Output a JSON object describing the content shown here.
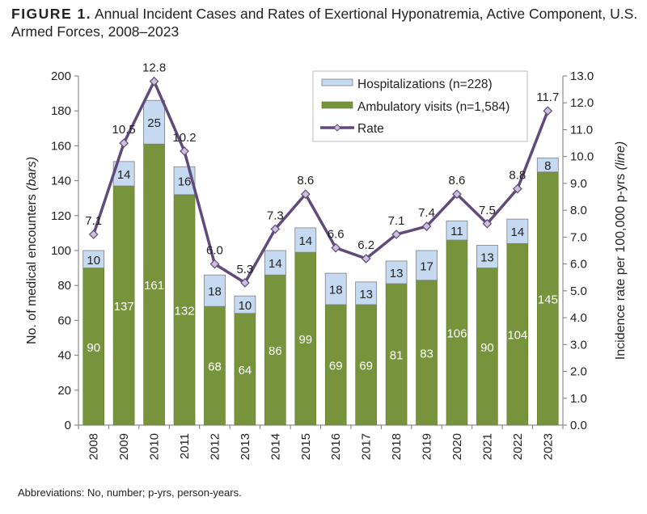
{
  "title_prefix": "FIGURE 1.",
  "title": "Annual Incident Cases and Rates of Exertional Hyponatremia, Active Component, U.S. Armed Forces, 2008–2023",
  "footnote": "Abbreviations: No, number; p-yrs, person-years.",
  "chart_data": {
    "type": "bar",
    "stacked": true,
    "categories": [
      "2008",
      "2009",
      "2010",
      "2011",
      "2012",
      "2013",
      "2014",
      "2015",
      "2016",
      "2017",
      "2018",
      "2019",
      "2020",
      "2021",
      "2022",
      "2023"
    ],
    "series": [
      {
        "name": "Ambulatory visits (n=1,584)",
        "color": "#77933c",
        "values": [
          90,
          137,
          161,
          132,
          68,
          64,
          86,
          99,
          69,
          69,
          81,
          83,
          106,
          90,
          104,
          145
        ]
      },
      {
        "name": "Hospitalizations (n=228)",
        "color": "#c5d9f1",
        "values": [
          10,
          14,
          25,
          16,
          18,
          10,
          14,
          14,
          18,
          13,
          13,
          17,
          11,
          13,
          14,
          8
        ]
      },
      {
        "name": "Rate",
        "type": "line",
        "axis": "right",
        "color": "#604a7b",
        "marker_color": "#ccc0da",
        "values": [
          7.1,
          10.5,
          12.8,
          10.2,
          6.0,
          5.3,
          7.3,
          8.6,
          6.6,
          6.2,
          7.1,
          7.4,
          8.6,
          7.5,
          8.8,
          11.7
        ]
      }
    ],
    "ylabel_left": "No. of medical encounters",
    "ylabel_left_italic": "(bars)",
    "ylabel_right": "Incidence rate per 100,000 p-yrs",
    "ylabel_right_italic": "(line)",
    "ylim_left": [
      0,
      200
    ],
    "yticks_left": [
      0,
      20,
      40,
      60,
      80,
      100,
      120,
      140,
      160,
      180,
      200
    ],
    "ylim_right": [
      0,
      13
    ],
    "yticks_right": [
      "0.0",
      "1.0",
      "2.0",
      "3.0",
      "4.0",
      "5.0",
      "6.0",
      "7.0",
      "8.0",
      "9.0",
      "10.0",
      "11.0",
      "12.0",
      "13.0"
    ],
    "legend_placement": "top-right",
    "grid": false
  }
}
